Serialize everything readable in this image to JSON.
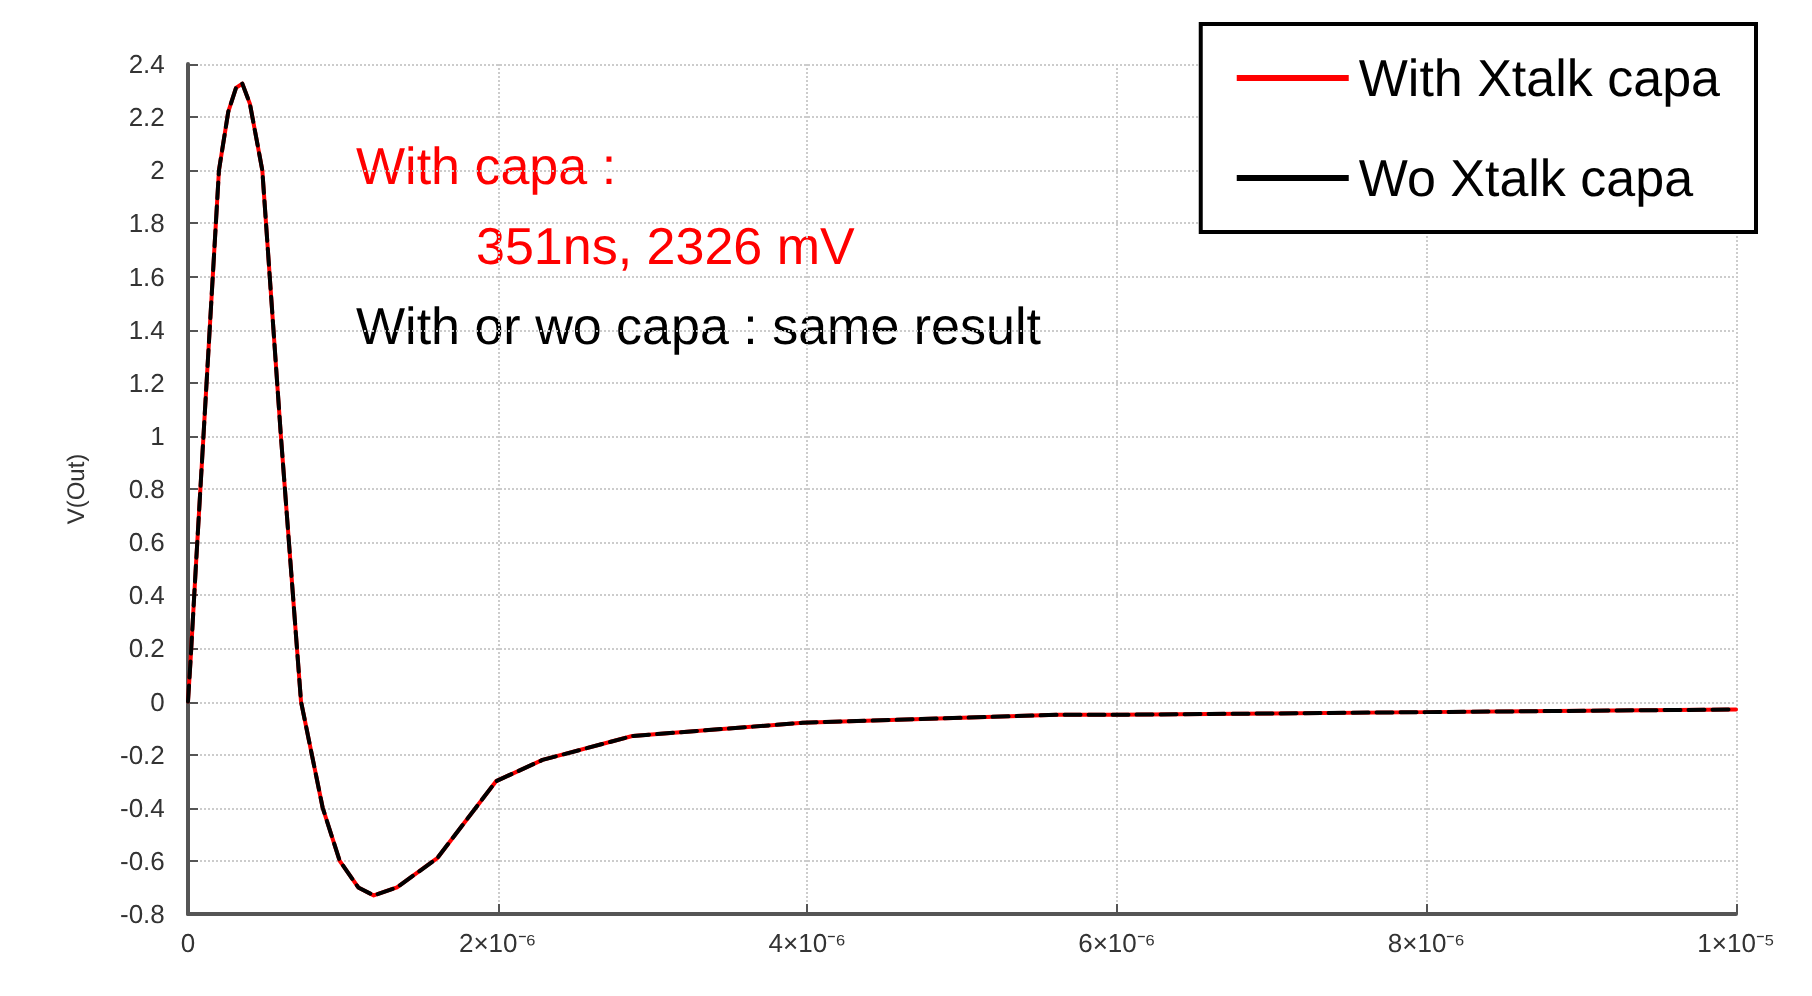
{
  "chart_data": {
    "type": "line",
    "ylabel": "V(Out)",
    "x": [
      0,
      1.7e-08,
      5e-08,
      1e-07,
      1.5e-07,
      2e-07,
      2.6e-07,
      3.1e-07,
      3.51e-07,
      4e-07,
      4.8e-07,
      6e-07,
      7.3e-07,
      8.7e-07,
      9.8e-07,
      1.1e-06,
      1.2e-06,
      1.35e-06,
      1.61e-06,
      1.99e-06,
      2.29e-06,
      2.87e-06,
      3.97e-06,
      5.62e-06,
      6e-06,
      8e-06,
      1e-05
    ],
    "series": [
      {
        "name": "With Xtalk capa",
        "color": "#ff0000",
        "line_style": "solid",
        "values": [
          0,
          0.16,
          0.5,
          1.0,
          1.5,
          2.0,
          2.22,
          2.31,
          2.326,
          2.25,
          2.0,
          1.0,
          0,
          -0.4,
          -0.6,
          -0.7,
          -0.73,
          -0.7,
          -0.59,
          -0.3,
          -0.22,
          -0.13,
          -0.08,
          -0.05,
          -0.05,
          -0.04,
          -0.03
        ]
      },
      {
        "name": "Wo Xtalk capa",
        "color": "#000000",
        "line_style": "dashed",
        "values": [
          0,
          0.16,
          0.5,
          1.0,
          1.5,
          2.0,
          2.22,
          2.31,
          2.326,
          2.25,
          2.0,
          1.0,
          0,
          -0.4,
          -0.6,
          -0.7,
          -0.73,
          -0.7,
          -0.59,
          -0.3,
          -0.22,
          -0.13,
          -0.08,
          -0.05,
          -0.05,
          -0.04,
          -0.03
        ]
      }
    ],
    "xlim": [
      0,
      1e-05
    ],
    "xticks": [
      0,
      {
        "value": 2e-06,
        "label": "2×10⁻⁶"
      },
      {
        "value": 4e-06,
        "label": "4×10⁻⁶"
      },
      {
        "value": 6e-06,
        "label": "6×10⁻⁶"
      },
      {
        "value": 8e-06,
        "label": "8×10⁻⁶"
      },
      {
        "value": 1e-05,
        "label": "1×10⁻⁵"
      }
    ],
    "ylim": [
      -0.8,
      2.4
    ],
    "yticks": [
      -0.8,
      -0.6,
      -0.4,
      -0.2,
      0,
      0.2,
      0.4,
      0.6,
      0.8,
      1,
      1.2,
      1.4,
      1.6,
      1.8,
      2,
      2.2,
      2.4
    ],
    "grid": true,
    "legend": "top right",
    "annotations": [
      "With capa :",
      "351ns, 2326 mV",
      "With or wo capa : same result"
    ]
  }
}
